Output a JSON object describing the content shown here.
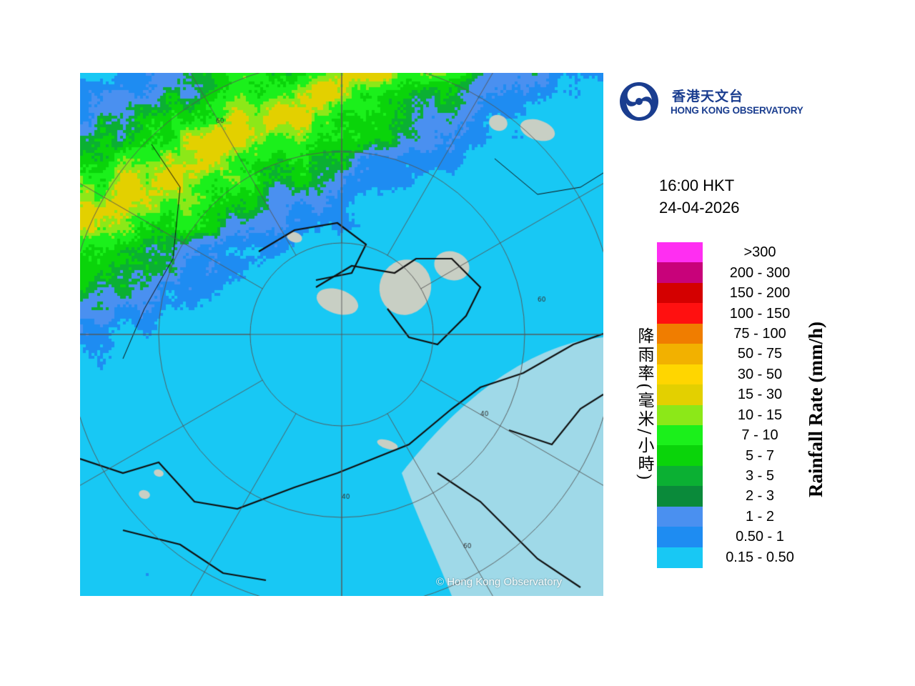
{
  "logo": {
    "name_zh": "香港天文台",
    "name_en": "HONG KONG OBSERVATORY",
    "icon": "hko-swirl-icon",
    "color": "#1a3d8f"
  },
  "timestamp": {
    "time": "16:00 HKT",
    "date": "24-04-2026"
  },
  "legend": {
    "unit_zh": "降雨率(毫米/小時)",
    "unit_en": "Rainfall Rate (mm/h)",
    "classes": [
      {
        "label": ">300",
        "color": "#ff2ef2"
      },
      {
        "label": "200 - 300",
        "color": "#c8027a"
      },
      {
        "label": "150 - 200",
        "color": "#d40000"
      },
      {
        "label": "100 - 150",
        "color": "#ff1010"
      },
      {
        "label": "75 - 100",
        "color": "#f07d00"
      },
      {
        "label": "50 - 75",
        "color": "#f2b100"
      },
      {
        "label": "30 - 50",
        "color": "#ffd600"
      },
      {
        "label": "15 - 30",
        "color": "#e3d000"
      },
      {
        "label": "10 - 15",
        "color": "#8ce818"
      },
      {
        "label": "7 - 10",
        "color": "#1bf01b"
      },
      {
        "label": "5 - 7",
        "color": "#0ad40a"
      },
      {
        "label": "3 - 5",
        "color": "#0bb033"
      },
      {
        "label": "2 - 3",
        "color": "#0a8a3a"
      },
      {
        "label": "1 - 2",
        "color": "#4a90f0"
      },
      {
        "label": "0.50 - 1",
        "color": "#1e8cf2"
      },
      {
        "label": "0.15 - 0.50",
        "color": "#18c8f4"
      }
    ]
  },
  "map": {
    "range_ring_labels": [
      "40",
      "40",
      "60",
      "60",
      "60"
    ],
    "copyright": "© Hong Kong Observatory",
    "colors": {
      "sea": "#9fd9e8",
      "land": "#c8cfc4",
      "coast": "#101010",
      "grid": "#555555"
    }
  }
}
